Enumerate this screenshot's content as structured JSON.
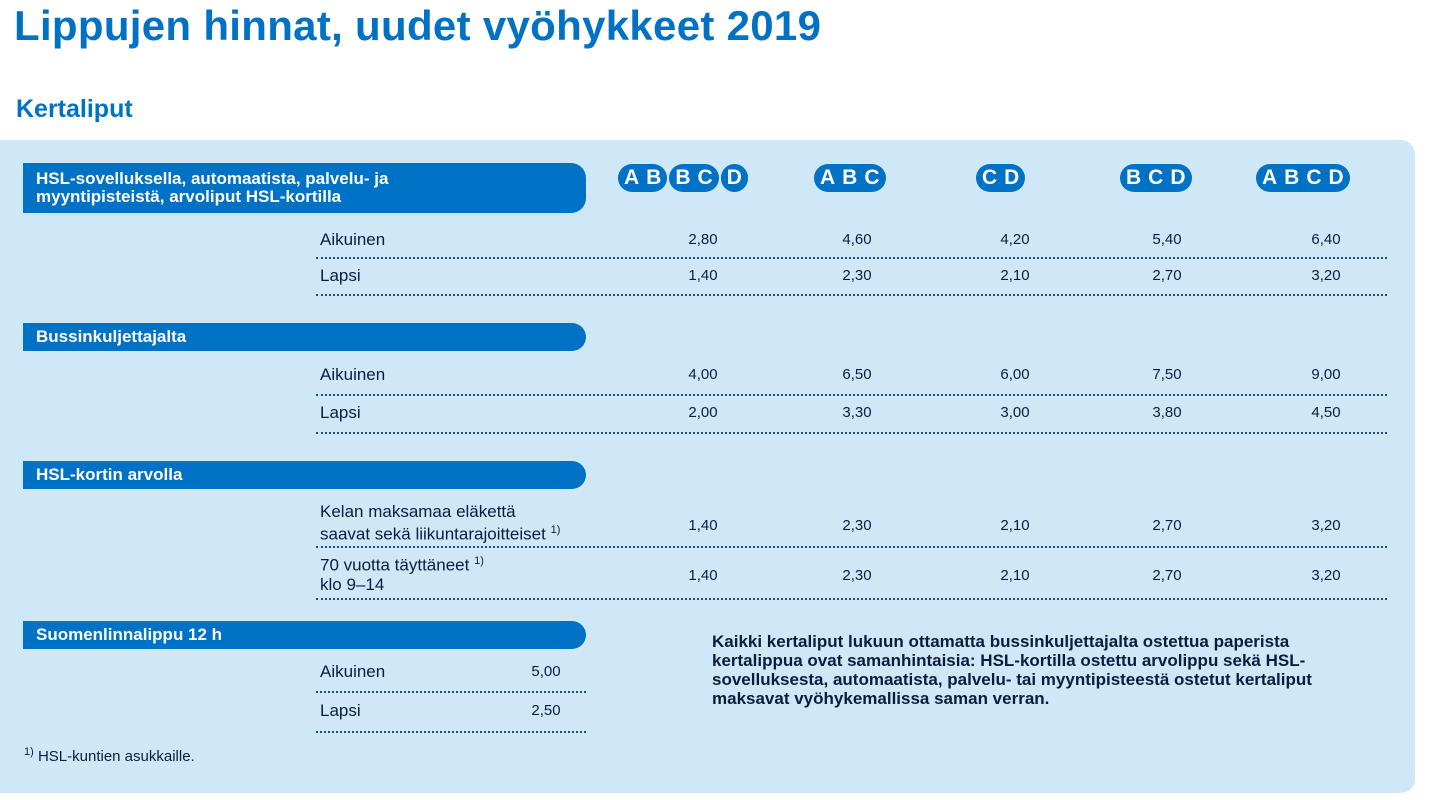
{
  "page": {
    "title": "Lippujen hinnat, uudet vyöhykkeet 2019",
    "subtitle": "Kertaliput"
  },
  "zones": [
    {
      "name": "AB",
      "letters": [
        "A",
        "B"
      ]
    },
    {
      "name": "BC",
      "letters": [
        "B",
        "C"
      ]
    },
    {
      "name": "D",
      "letters": [
        "D"
      ]
    },
    {
      "name": "ABC",
      "letters": [
        "A",
        "B",
        "C"
      ]
    },
    {
      "name": "CD",
      "letters": [
        "C",
        "D"
      ]
    },
    {
      "name": "BCD",
      "letters": [
        "B",
        "C",
        "D"
      ]
    },
    {
      "name": "ABCD",
      "letters": [
        "A",
        "B",
        "C",
        "D"
      ]
    }
  ],
  "sections": {
    "app": {
      "header": "HSL-sovelluksella, automaatista, palvelu- ja myyntipisteistä, arvoliput HSL-kortilla",
      "rows": [
        {
          "label": "Aikuinen",
          "prices": [
            "2,80",
            "4,60",
            "4,20",
            "5,40",
            "6,40"
          ]
        },
        {
          "label": "Lapsi",
          "prices": [
            "1,40",
            "2,30",
            "2,10",
            "2,70",
            "3,20"
          ]
        }
      ]
    },
    "bus": {
      "header": "Bussinkuljettajalta",
      "rows": [
        {
          "label": "Aikuinen",
          "prices": [
            "4,00",
            "6,50",
            "6,00",
            "7,50",
            "9,00"
          ]
        },
        {
          "label": "Lapsi",
          "prices": [
            "2,00",
            "3,30",
            "3,00",
            "3,80",
            "4,50"
          ]
        }
      ]
    },
    "card": {
      "header": "HSL-kortin arvolla",
      "rows": [
        {
          "label_line1": "Kelan maksamaa eläkettä",
          "label_line2": "saavat sekä liikuntarajoitteiset",
          "sup": "1)",
          "prices": [
            "1,40",
            "2,30",
            "2,10",
            "2,70",
            "3,20"
          ]
        },
        {
          "label_line1": "70 vuotta täyttäneet",
          "sup": "1)",
          "label_line2": "klo 9–14",
          "prices": [
            "1,40",
            "2,30",
            "2,10",
            "2,70",
            "3,20"
          ]
        }
      ]
    },
    "suomenlinna": {
      "header": "Suomenlinnalippu 12 h",
      "rows": [
        {
          "label": "Aikuinen",
          "price": "5,00"
        },
        {
          "label": "Lapsi",
          "price": "2,50"
        }
      ]
    }
  },
  "note": "Kaikki kertaliput lukuun ottamatta bussinkuljettajalta ostettua paperista kertalippua ovat samanhintaisia: HSL-kortilla ostettu arvolippu sekä HSL-sovelluksesta, automaatista, palvelu- tai myyntipisteestä ostetut kertaliput maksavat vyöhykemallissa saman verran.",
  "footnote": {
    "mark": "1)",
    "text": "HSL-kuntien asukkaille."
  }
}
